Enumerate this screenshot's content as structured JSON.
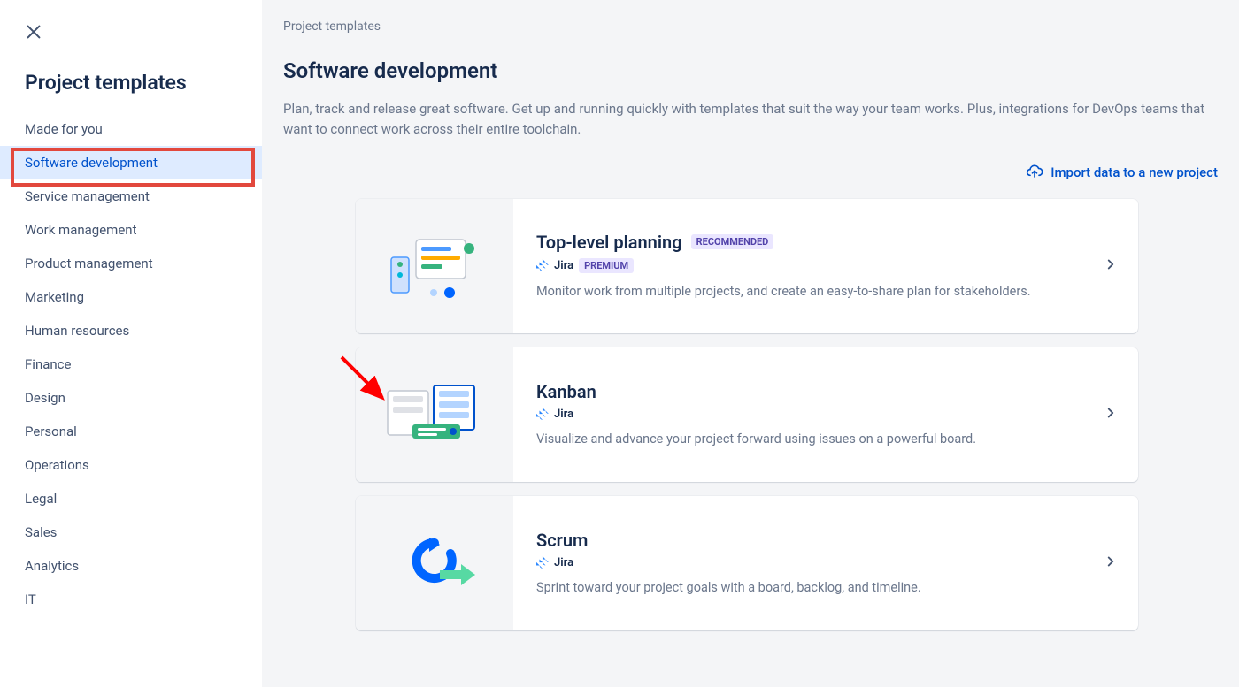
{
  "sidebar": {
    "title": "Project templates",
    "items": [
      {
        "label": "Made for you",
        "selected": false
      },
      {
        "label": "Software development",
        "selected": true
      },
      {
        "label": "Service management",
        "selected": false
      },
      {
        "label": "Work management",
        "selected": false
      },
      {
        "label": "Product management",
        "selected": false
      },
      {
        "label": "Marketing",
        "selected": false
      },
      {
        "label": "Human resources",
        "selected": false
      },
      {
        "label": "Finance",
        "selected": false
      },
      {
        "label": "Design",
        "selected": false
      },
      {
        "label": "Personal",
        "selected": false
      },
      {
        "label": "Operations",
        "selected": false
      },
      {
        "label": "Legal",
        "selected": false
      },
      {
        "label": "Sales",
        "selected": false
      },
      {
        "label": "Analytics",
        "selected": false
      },
      {
        "label": "IT",
        "selected": false
      }
    ]
  },
  "main": {
    "breadcrumb": "Project templates",
    "title": "Software development",
    "description": "Plan, track and release great software. Get up and running quickly with templates that suit the way your team works. Plus, integrations for DevOps teams that want to connect work across their entire toolchain.",
    "import_label": "Import data to a new project"
  },
  "cards": [
    {
      "title": "Top-level planning",
      "recommended": "RECOMMENDED",
      "product": "Jira",
      "premium": "PREMIUM",
      "description": "Monitor work from multiple projects, and create an easy-to-share plan for stakeholders.",
      "illustration": "planning"
    },
    {
      "title": "Kanban",
      "recommended": "",
      "product": "Jira",
      "premium": "",
      "description": "Visualize and advance your project forward using issues on a powerful board.",
      "illustration": "kanban"
    },
    {
      "title": "Scrum",
      "recommended": "",
      "product": "Jira",
      "premium": "",
      "description": "Sprint toward your project goals with a board, backlog, and timeline.",
      "illustration": "scrum"
    }
  ],
  "colors": {
    "sidebar_selected_bg": "#deebff",
    "sidebar_selected_fg": "#0052cc",
    "highlight_border": "#e2483d",
    "arrow": "#ff0000",
    "link": "#0052cc",
    "text_primary": "#172b4d",
    "text_secondary": "#6b778c",
    "badge_bg": "#eae6ff",
    "badge_fg": "#5243aa",
    "page_bg": "#f4f5f7"
  }
}
